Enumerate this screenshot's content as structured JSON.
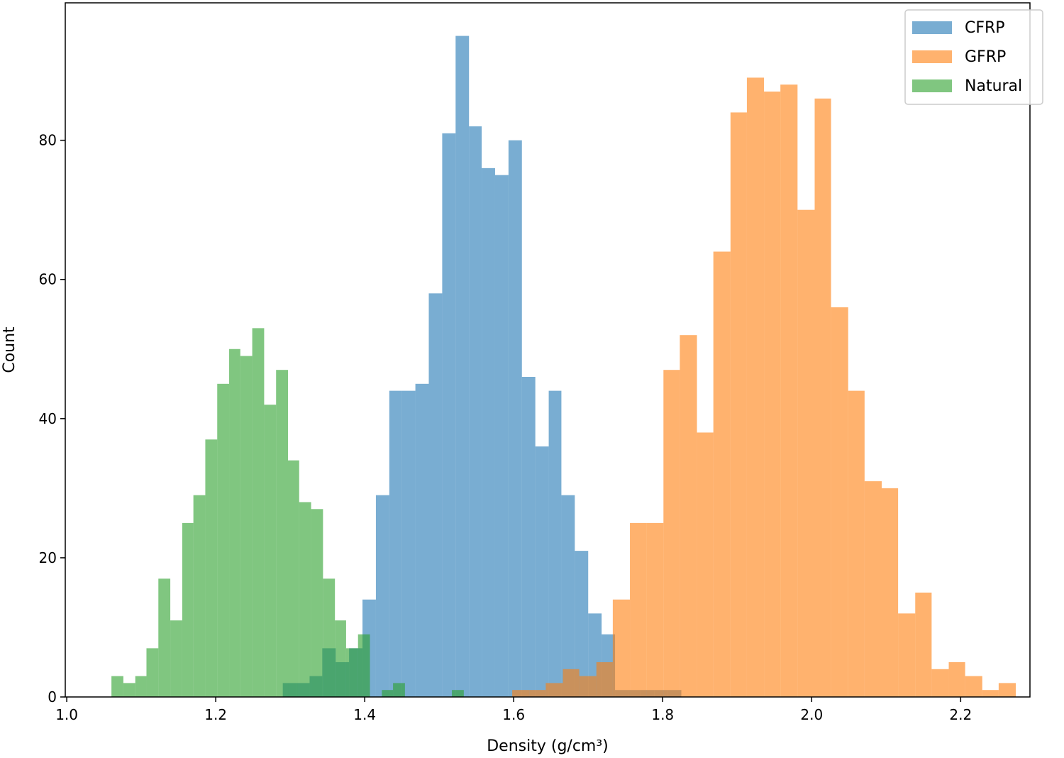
{
  "chart_data": {
    "type": "histogram",
    "xlabel": "Density (g/cm³)",
    "ylabel": "Count",
    "xlim": [
      0.998,
      2.293
    ],
    "ylim": [
      0,
      99.75
    ],
    "xticks": [
      {
        "value": 1.0,
        "label": "1.0"
      },
      1.2,
      1.4,
      1.6,
      1.8,
      {
        "value": 2.0,
        "label": "2.0"
      },
      2.2
    ],
    "yticks": [
      0,
      20,
      40,
      60,
      80
    ],
    "alpha": 0.6,
    "legend": "upper right",
    "grid": false,
    "series": [
      {
        "name": "CFRP",
        "color": "#1f77b4",
        "bins": [
          1.29,
          1.308,
          1.326,
          1.343,
          1.361,
          1.379,
          1.397,
          1.415,
          1.433,
          1.45,
          1.468,
          1.486,
          1.504,
          1.522,
          1.54,
          1.557,
          1.575,
          1.593,
          1.611,
          1.629,
          1.647,
          1.664,
          1.682,
          1.7,
          1.718,
          1.736,
          1.754,
          1.771,
          1.789,
          1.807,
          1.825
        ],
        "values": [
          2,
          2,
          3,
          7,
          5,
          7,
          14,
          29,
          44,
          44,
          45,
          58,
          81,
          95,
          82,
          76,
          75,
          80,
          46,
          36,
          44,
          29,
          21,
          12,
          9,
          1,
          1,
          1,
          1,
          1
        ]
      },
      {
        "name": "GFRP",
        "color": "#ff7f0e",
        "bins": [
          1.598,
          1.621,
          1.643,
          1.666,
          1.688,
          1.711,
          1.733,
          1.756,
          1.778,
          1.801,
          1.823,
          1.846,
          1.868,
          1.891,
          1.913,
          1.936,
          1.958,
          1.981,
          2.004,
          2.026,
          2.049,
          2.071,
          2.094,
          2.116,
          2.139,
          2.161,
          2.184,
          2.206,
          2.229,
          2.251,
          2.274
        ],
        "values": [
          1,
          1,
          2,
          4,
          3,
          5,
          14,
          25,
          25,
          47,
          52,
          38,
          64,
          84,
          89,
          87,
          88,
          70,
          86,
          56,
          44,
          31,
          30,
          12,
          15,
          4,
          5,
          3,
          1,
          2
        ]
      },
      {
        "name": "Natural",
        "color": "#2ca02c",
        "bins": [
          1.06,
          1.076,
          1.092,
          1.107,
          1.123,
          1.139,
          1.155,
          1.17,
          1.186,
          1.202,
          1.218,
          1.233,
          1.249,
          1.265,
          1.281,
          1.297,
          1.312,
          1.328,
          1.344,
          1.36,
          1.375,
          1.391,
          1.407,
          1.423,
          1.438,
          1.454,
          1.47,
          1.486,
          1.502,
          1.517,
          1.533
        ],
        "values": [
          3,
          2,
          3,
          7,
          17,
          11,
          25,
          29,
          37,
          45,
          50,
          49,
          53,
          42,
          47,
          34,
          28,
          27,
          17,
          11,
          7,
          9,
          0,
          1,
          2,
          0,
          0,
          0,
          0,
          1
        ]
      }
    ]
  }
}
